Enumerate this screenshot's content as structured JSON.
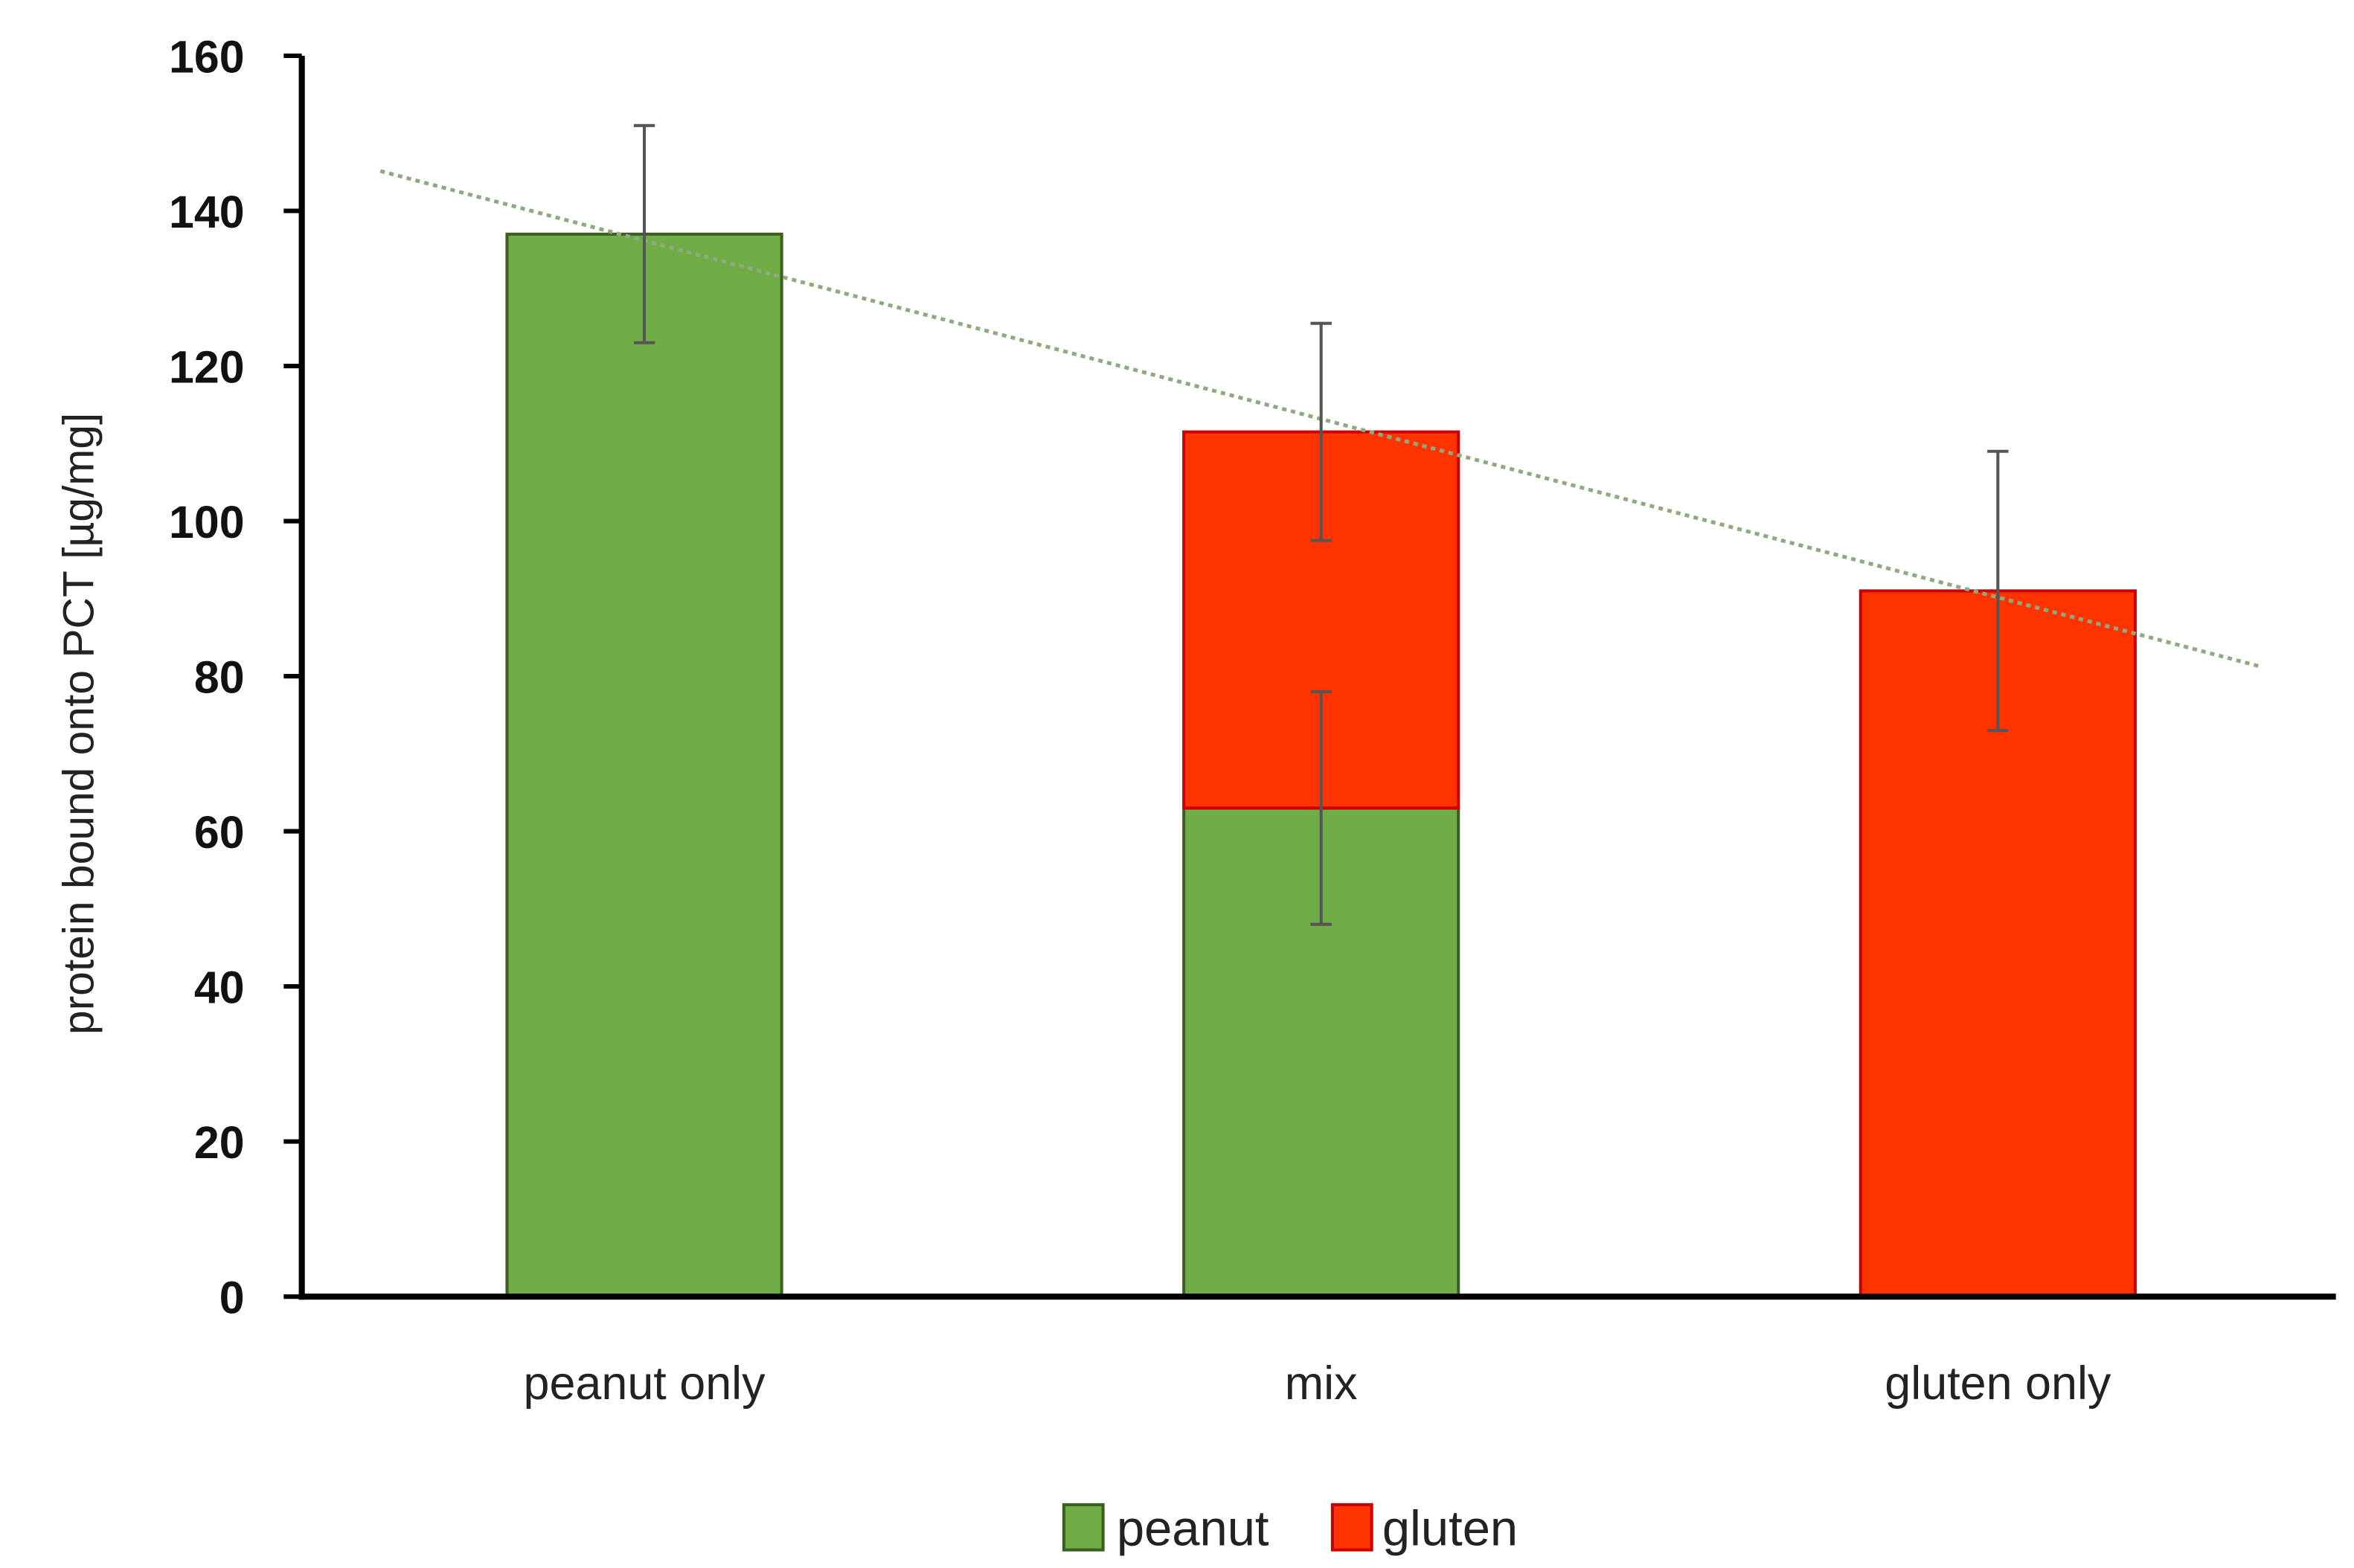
{
  "chart_data": {
    "type": "bar",
    "stacked": true,
    "categories": [
      "peanut only",
      "mix",
      "gluten only"
    ],
    "series": [
      {
        "name": "peanut",
        "values": [
          137,
          63,
          0
        ],
        "errors": [
          14,
          15,
          null
        ],
        "color": "#70AD47"
      },
      {
        "name": "gluten",
        "values": [
          0,
          48.5,
          91
        ],
        "errors": [
          null,
          14,
          18
        ],
        "color": "#FF3300"
      }
    ],
    "trendline": {
      "type": "linear",
      "of": "stack totals",
      "style": "dotted",
      "color": "#8FAA80"
    },
    "xlabel": "",
    "ylabel": "protein bound onto PCT [µg/mg]",
    "ylim": [
      0,
      160
    ],
    "yticks": [
      "0",
      "20",
      "40",
      "60",
      "80",
      "100",
      "120",
      "140",
      "160"
    ],
    "grid": false,
    "legend": "bottom"
  }
}
